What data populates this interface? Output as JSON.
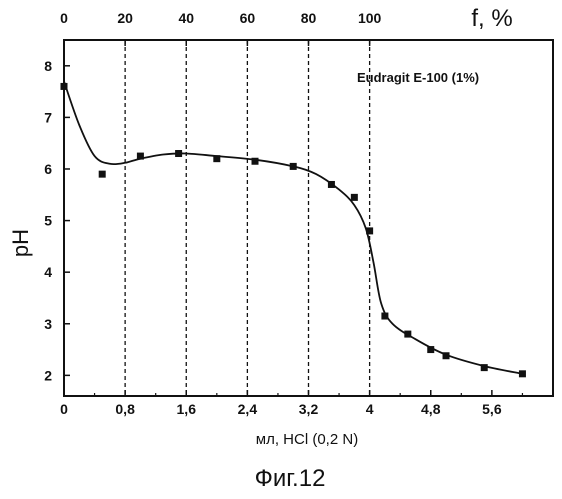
{
  "chart_data": {
    "type": "scatter",
    "xlabel": "мл, HCl (0,2 N)",
    "ylabel": "pH",
    "x2label": "f, %",
    "annotation": "Eudragit E-100 (1%)",
    "caption": "Фиг.12",
    "xlim": [
      0,
      6.4
    ],
    "ylim": [
      1.6,
      8.5
    ],
    "x_ticks": [
      0,
      0.8,
      1.6,
      2.4,
      3.2,
      4,
      4.8,
      5.6
    ],
    "x_tick_labels": [
      "0",
      "0,8",
      "1,6",
      "2,4",
      "3,2",
      "4",
      "4,8",
      "5,6"
    ],
    "y_ticks": [
      2,
      3,
      4,
      5,
      6,
      7,
      8
    ],
    "y_tick_labels": [
      "2",
      "3",
      "4",
      "5",
      "6",
      "7",
      "8"
    ],
    "x2_ticks": [
      0,
      0.8,
      1.6,
      2.4,
      3.2,
      4
    ],
    "x2_tick_labels": [
      "0",
      "20",
      "40",
      "60",
      "80",
      "100"
    ],
    "vlines": [
      0.8,
      1.6,
      2.4,
      3.2,
      4.0
    ],
    "points": [
      {
        "x": 0.0,
        "y": 7.6
      },
      {
        "x": 0.5,
        "y": 5.9
      },
      {
        "x": 1.0,
        "y": 6.25
      },
      {
        "x": 1.5,
        "y": 6.3
      },
      {
        "x": 2.0,
        "y": 6.2
      },
      {
        "x": 2.5,
        "y": 6.15
      },
      {
        "x": 3.0,
        "y": 6.05
      },
      {
        "x": 3.5,
        "y": 5.7
      },
      {
        "x": 3.8,
        "y": 5.45
      },
      {
        "x": 4.0,
        "y": 4.8
      },
      {
        "x": 4.2,
        "y": 3.15
      },
      {
        "x": 4.5,
        "y": 2.8
      },
      {
        "x": 4.8,
        "y": 2.5
      },
      {
        "x": 5.0,
        "y": 2.38
      },
      {
        "x": 5.5,
        "y": 2.15
      },
      {
        "x": 6.0,
        "y": 2.03
      }
    ],
    "fit_curve": [
      {
        "x": 0.0,
        "y": 7.7
      },
      {
        "x": 0.2,
        "y": 6.85
      },
      {
        "x": 0.4,
        "y": 6.25
      },
      {
        "x": 0.6,
        "y": 6.1
      },
      {
        "x": 0.8,
        "y": 6.12
      },
      {
        "x": 1.0,
        "y": 6.2
      },
      {
        "x": 1.3,
        "y": 6.28
      },
      {
        "x": 1.6,
        "y": 6.3
      },
      {
        "x": 2.0,
        "y": 6.25
      },
      {
        "x": 2.5,
        "y": 6.18
      },
      {
        "x": 3.0,
        "y": 6.05
      },
      {
        "x": 3.3,
        "y": 5.9
      },
      {
        "x": 3.6,
        "y": 5.6
      },
      {
        "x": 3.8,
        "y": 5.3
      },
      {
        "x": 3.95,
        "y": 4.85
      },
      {
        "x": 4.05,
        "y": 4.2
      },
      {
        "x": 4.15,
        "y": 3.4
      },
      {
        "x": 4.3,
        "y": 3.0
      },
      {
        "x": 4.6,
        "y": 2.7
      },
      {
        "x": 5.0,
        "y": 2.4
      },
      {
        "x": 5.5,
        "y": 2.18
      },
      {
        "x": 6.0,
        "y": 2.03
      }
    ]
  }
}
